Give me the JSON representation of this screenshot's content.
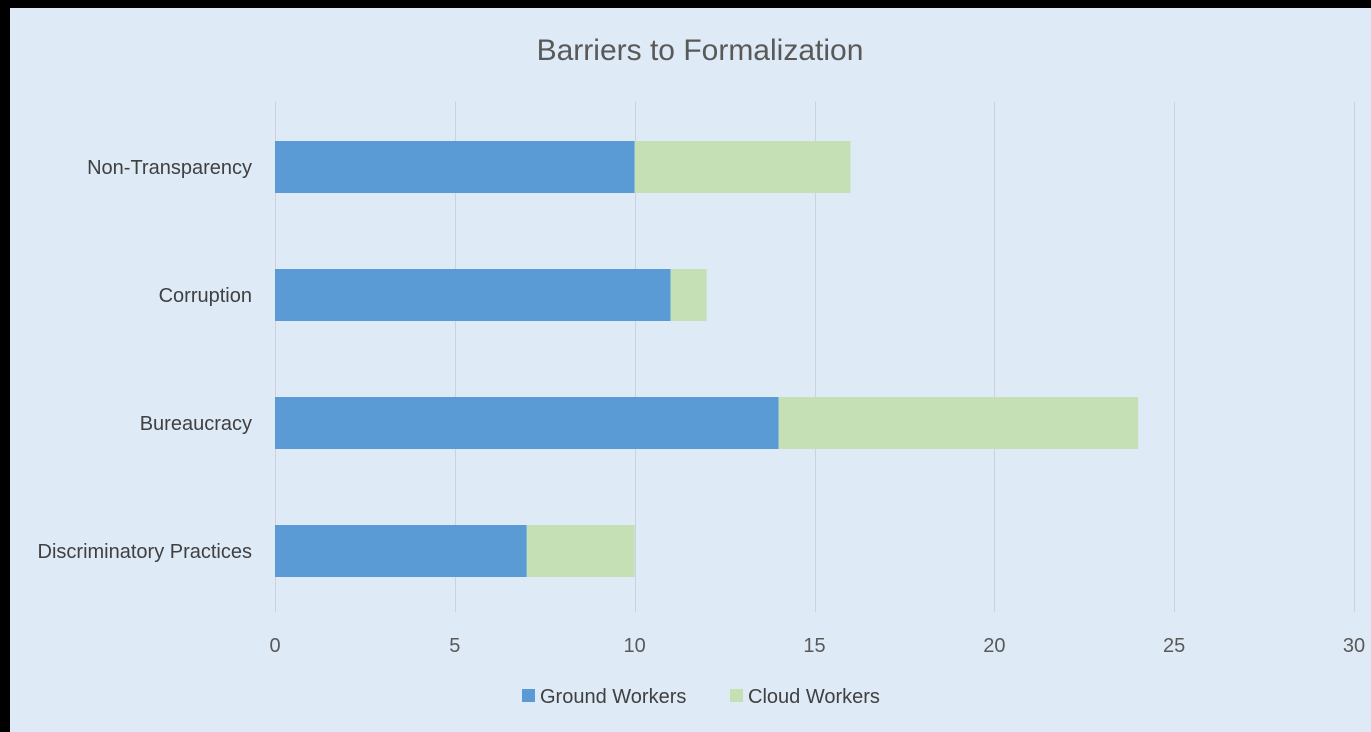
{
  "chart_data": {
    "type": "bar",
    "orientation": "horizontal",
    "stacked": true,
    "title": "Barriers to Formalization",
    "categories": [
      "Non-Transparency",
      "Corruption",
      "Bureaucracy",
      "Discriminatory Practices"
    ],
    "series": [
      {
        "name": "Ground Workers",
        "color": "#5b9bd5",
        "values": [
          10,
          11,
          14,
          7
        ]
      },
      {
        "name": "Cloud Workers",
        "color": "#c5e0b4",
        "values": [
          6,
          1,
          10,
          3
        ]
      }
    ],
    "xlim": [
      0,
      30
    ],
    "xticks": [
      0,
      5,
      10,
      15,
      20,
      25,
      30
    ],
    "xtick_labels": [
      "0",
      "5",
      "10",
      "15",
      "20",
      "25",
      "30"
    ],
    "grid": "vertical",
    "legend_position": "bottom",
    "background": "#deeaf6"
  }
}
